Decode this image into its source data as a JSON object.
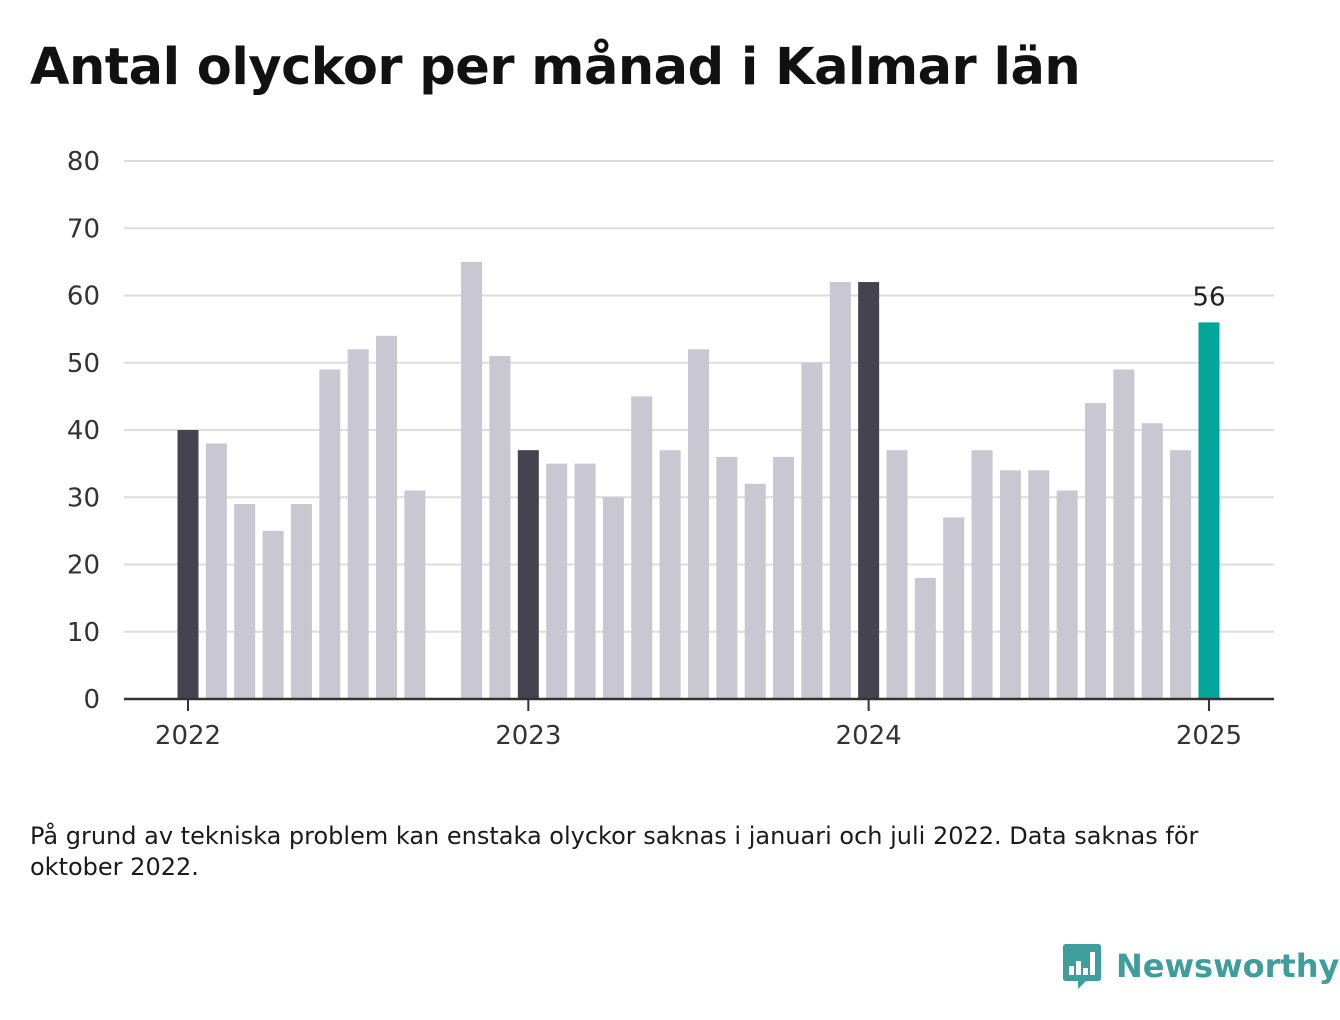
{
  "title": "Antal olyckor per månad i Kalmar län",
  "note": "På grund av tekniska problem kan enstaka olyckor saknas i januari och juli 2022. Data saknas för oktober 2022.",
  "brand": {
    "name": "Newsworthy",
    "icon": "newsworthy-logo-icon",
    "color": "#3f9e9b"
  },
  "colors": {
    "default_bar": "#c8c7d2",
    "january_bar": "#44434f",
    "latest_bar": "#00a69a",
    "grid": "#dddddd",
    "axis": "#333333"
  },
  "chart_data": {
    "type": "bar",
    "title": "Antal olyckor per månad i Kalmar län",
    "xlabel": "",
    "ylabel": "",
    "ylim": [
      0,
      80
    ],
    "yticks": [
      "0",
      "10",
      "20",
      "30",
      "40",
      "50",
      "60",
      "70",
      "80"
    ],
    "xticks": [
      {
        "label": "2022",
        "at": "2022-01"
      },
      {
        "label": "2023",
        "at": "2023-01"
      },
      {
        "label": "2024",
        "at": "2024-01"
      },
      {
        "label": "2025",
        "at": "2025-01"
      }
    ],
    "grid": true,
    "legend": "none",
    "categories": [
      "2022-01",
      "2022-02",
      "2022-03",
      "2022-04",
      "2022-05",
      "2022-06",
      "2022-07",
      "2022-08",
      "2022-09",
      "2022-10",
      "2022-11",
      "2022-12",
      "2023-01",
      "2023-02",
      "2023-03",
      "2023-04",
      "2023-05",
      "2023-06",
      "2023-07",
      "2023-08",
      "2023-09",
      "2023-10",
      "2023-11",
      "2023-12",
      "2024-01",
      "2024-02",
      "2024-03",
      "2024-04",
      "2024-05",
      "2024-06",
      "2024-07",
      "2024-08",
      "2024-09",
      "2024-10",
      "2024-11",
      "2024-12",
      "2025-01"
    ],
    "values": [
      40,
      38,
      29,
      25,
      29,
      49,
      52,
      54,
      31,
      null,
      65,
      51,
      37,
      35,
      35,
      30,
      45,
      37,
      52,
      36,
      32,
      36,
      50,
      62,
      62,
      37,
      18,
      27,
      37,
      34,
      34,
      31,
      44,
      49,
      41,
      37,
      56
    ],
    "highlight": "2025-01",
    "annotations": [
      {
        "at": "2025-01",
        "label": "56"
      }
    ]
  }
}
